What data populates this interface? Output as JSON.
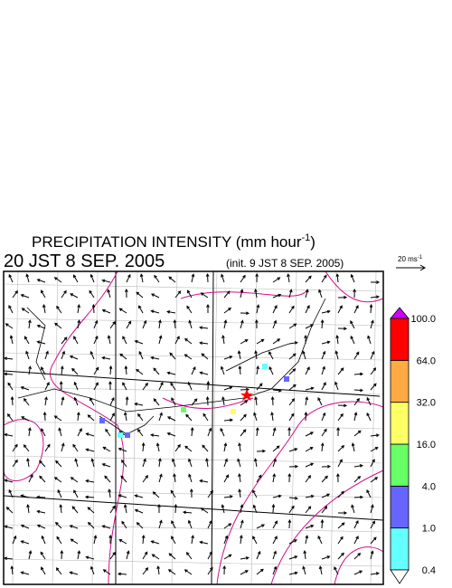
{
  "title": {
    "main": "PRECIPITATION INTENSITY (mm hour",
    "sup": "-1",
    "close": ")"
  },
  "time": "20 JST 8 SEP. 2005",
  "init": "(init. 9 JST 8 SEP. 2005)",
  "vector_legend": {
    "text": "20 ms",
    "sup": "-1"
  },
  "colorbar": {
    "labels": [
      "0.4",
      "1.0",
      "4.0",
      "16.0",
      "32.0",
      "64.0",
      "100.0"
    ],
    "colors": [
      "#66ffff",
      "#6666ff",
      "#66ff66",
      "#ffff66",
      "#ffaa44",
      "#ff0000"
    ],
    "under_color": "#ffffff",
    "over_color": "#cc00ff"
  }
}
